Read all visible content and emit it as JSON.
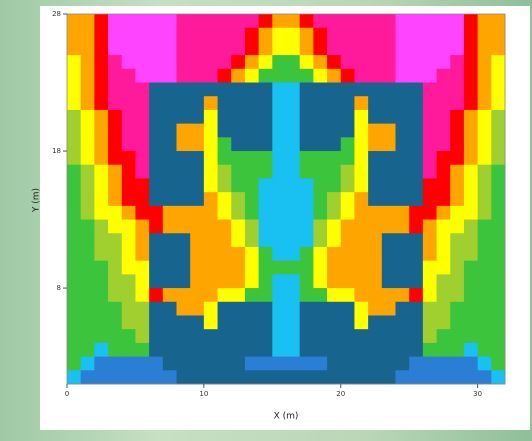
{
  "chart_data": {
    "type": "heatmap",
    "x_label": "X (m)",
    "y_label": "Y (m)",
    "xlim": [
      0,
      32
    ],
    "ylim": [
      1,
      28
    ],
    "xticks": [
      0,
      10,
      20,
      30
    ],
    "yticks": [
      8,
      18,
      28
    ],
    "colors": [
      "#17658f",
      "#2a7ed3",
      "#19c0f2",
      "#3dc43d",
      "#9fd02f",
      "#ffff00",
      "#ffa500",
      "#ff0000",
      "#ff1a9c",
      "#ff44ff"
    ],
    "z": [
      [
        6,
        6,
        7,
        9,
        9,
        9,
        9,
        9,
        8,
        8,
        8,
        8,
        8,
        8,
        7,
        6,
        6,
        7,
        8,
        8,
        8,
        8,
        8,
        8,
        9,
        9,
        9,
        9,
        9,
        7,
        6,
        6
      ],
      [
        6,
        6,
        7,
        9,
        9,
        9,
        9,
        9,
        8,
        8,
        8,
        8,
        8,
        7,
        6,
        5,
        5,
        6,
        7,
        8,
        8,
        8,
        8,
        8,
        9,
        9,
        9,
        9,
        9,
        7,
        6,
        6
      ],
      [
        6,
        6,
        7,
        9,
        9,
        9,
        9,
        9,
        8,
        8,
        8,
        8,
        8,
        7,
        6,
        5,
        5,
        6,
        7,
        8,
        8,
        8,
        8,
        8,
        9,
        9,
        9,
        9,
        9,
        7,
        6,
        6
      ],
      [
        5,
        6,
        7,
        8,
        9,
        9,
        9,
        9,
        8,
        8,
        8,
        8,
        7,
        6,
        5,
        3,
        3,
        5,
        6,
        7,
        8,
        8,
        8,
        8,
        9,
        9,
        9,
        9,
        8,
        7,
        6,
        5
      ],
      [
        5,
        6,
        7,
        8,
        8,
        9,
        9,
        9,
        8,
        8,
        8,
        7,
        6,
        5,
        3,
        3,
        3,
        3,
        5,
        6,
        7,
        8,
        8,
        8,
        9,
        9,
        9,
        8,
        8,
        7,
        6,
        5
      ],
      [
        5,
        6,
        7,
        8,
        8,
        8,
        0,
        0,
        0,
        0,
        0,
        0,
        0,
        0,
        0,
        2,
        2,
        0,
        0,
        0,
        0,
        0,
        0,
        0,
        0,
        0,
        8,
        8,
        8,
        7,
        6,
        5
      ],
      [
        5,
        6,
        7,
        8,
        8,
        8,
        0,
        0,
        0,
        0,
        6,
        0,
        0,
        0,
        0,
        2,
        2,
        0,
        0,
        0,
        0,
        6,
        0,
        0,
        0,
        0,
        8,
        8,
        8,
        7,
        6,
        5
      ],
      [
        4,
        5,
        6,
        7,
        8,
        8,
        0,
        0,
        0,
        0,
        5,
        0,
        0,
        0,
        0,
        2,
        2,
        0,
        0,
        0,
        0,
        5,
        0,
        0,
        0,
        0,
        8,
        8,
        7,
        6,
        5,
        4
      ],
      [
        4,
        5,
        6,
        7,
        8,
        8,
        0,
        0,
        6,
        6,
        5,
        0,
        0,
        0,
        0,
        2,
        2,
        0,
        0,
        0,
        0,
        5,
        6,
        6,
        0,
        0,
        8,
        8,
        7,
        6,
        5,
        4
      ],
      [
        4,
        5,
        6,
        7,
        8,
        8,
        0,
        0,
        6,
        6,
        5,
        3,
        0,
        0,
        0,
        2,
        2,
        0,
        0,
        0,
        3,
        5,
        6,
        6,
        0,
        0,
        8,
        8,
        7,
        6,
        5,
        4
      ],
      [
        4,
        5,
        6,
        7,
        7,
        8,
        0,
        0,
        0,
        0,
        5,
        3,
        3,
        3,
        3,
        2,
        2,
        3,
        3,
        3,
        3,
        5,
        0,
        0,
        0,
        0,
        8,
        7,
        7,
        6,
        5,
        4
      ],
      [
        3,
        4,
        5,
        6,
        7,
        8,
        0,
        0,
        0,
        0,
        5,
        4,
        3,
        3,
        3,
        2,
        2,
        3,
        3,
        3,
        4,
        5,
        0,
        0,
        0,
        0,
        8,
        7,
        6,
        5,
        4,
        3
      ],
      [
        3,
        4,
        5,
        6,
        7,
        7,
        0,
        0,
        0,
        0,
        5,
        4,
        3,
        3,
        2,
        2,
        2,
        2,
        3,
        3,
        4,
        5,
        0,
        0,
        0,
        0,
        7,
        7,
        6,
        5,
        4,
        3
      ],
      [
        3,
        4,
        5,
        6,
        7,
        7,
        0,
        0,
        0,
        0,
        6,
        5,
        4,
        3,
        2,
        2,
        2,
        2,
        3,
        4,
        5,
        6,
        0,
        0,
        0,
        0,
        7,
        7,
        6,
        5,
        4,
        3
      ],
      [
        3,
        4,
        5,
        5,
        6,
        7,
        7,
        6,
        6,
        6,
        6,
        5,
        4,
        3,
        2,
        2,
        2,
        2,
        3,
        4,
        5,
        6,
        6,
        6,
        6,
        7,
        7,
        6,
        5,
        5,
        4,
        3
      ],
      [
        3,
        3,
        4,
        5,
        5,
        6,
        7,
        6,
        6,
        6,
        6,
        6,
        5,
        4,
        2,
        2,
        2,
        2,
        4,
        5,
        6,
        6,
        6,
        6,
        6,
        7,
        6,
        5,
        5,
        4,
        3,
        3
      ],
      [
        3,
        3,
        4,
        4,
        5,
        6,
        0,
        0,
        0,
        6,
        6,
        6,
        5,
        4,
        2,
        2,
        2,
        2,
        4,
        5,
        6,
        6,
        6,
        0,
        0,
        0,
        6,
        5,
        4,
        4,
        3,
        3
      ],
      [
        3,
        3,
        4,
        4,
        5,
        6,
        0,
        0,
        0,
        6,
        6,
        6,
        6,
        5,
        3,
        2,
        2,
        3,
        5,
        6,
        6,
        6,
        6,
        0,
        0,
        0,
        6,
        5,
        4,
        4,
        3,
        3
      ],
      [
        3,
        3,
        3,
        4,
        5,
        5,
        0,
        0,
        0,
        6,
        6,
        6,
        6,
        5,
        3,
        3,
        3,
        3,
        5,
        6,
        6,
        6,
        6,
        0,
        0,
        0,
        5,
        5,
        4,
        3,
        3,
        3
      ],
      [
        3,
        3,
        3,
        4,
        4,
        5,
        0,
        0,
        0,
        6,
        6,
        6,
        6,
        5,
        3,
        2,
        2,
        3,
        5,
        6,
        6,
        6,
        6,
        0,
        0,
        0,
        5,
        4,
        4,
        3,
        3,
        3
      ],
      [
        3,
        3,
        3,
        4,
        4,
        5,
        7,
        6,
        6,
        6,
        6,
        5,
        5,
        3,
        3,
        2,
        2,
        3,
        3,
        5,
        5,
        6,
        6,
        6,
        6,
        7,
        5,
        4,
        4,
        3,
        3,
        3
      ],
      [
        3,
        3,
        3,
        3,
        4,
        4,
        0,
        0,
        6,
        6,
        5,
        0,
        0,
        0,
        0,
        2,
        2,
        0,
        0,
        0,
        0,
        5,
        6,
        6,
        0,
        0,
        4,
        4,
        3,
        3,
        3,
        3
      ],
      [
        3,
        3,
        3,
        3,
        4,
        4,
        0,
        0,
        0,
        0,
        5,
        0,
        0,
        0,
        0,
        2,
        2,
        0,
        0,
        0,
        0,
        5,
        0,
        0,
        0,
        0,
        4,
        4,
        3,
        3,
        3,
        3
      ],
      [
        3,
        3,
        3,
        3,
        3,
        4,
        0,
        0,
        0,
        0,
        0,
        0,
        0,
        0,
        0,
        2,
        2,
        0,
        0,
        0,
        0,
        0,
        0,
        0,
        0,
        0,
        4,
        3,
        3,
        3,
        3,
        3
      ],
      [
        3,
        3,
        2,
        3,
        3,
        3,
        0,
        0,
        0,
        0,
        0,
        0,
        0,
        0,
        0,
        2,
        2,
        0,
        0,
        0,
        0,
        0,
        0,
        0,
        0,
        0,
        3,
        3,
        3,
        2,
        3,
        3
      ],
      [
        3,
        2,
        1,
        1,
        1,
        1,
        1,
        0,
        0,
        0,
        0,
        0,
        0,
        1,
        1,
        1,
        1,
        1,
        1,
        0,
        0,
        0,
        0,
        0,
        0,
        1,
        1,
        1,
        1,
        1,
        2,
        3
      ],
      [
        2,
        1,
        1,
        1,
        1,
        1,
        1,
        1,
        0,
        0,
        0,
        0,
        0,
        0,
        0,
        0,
        0,
        0,
        0,
        0,
        0,
        0,
        0,
        0,
        1,
        1,
        1,
        1,
        1,
        1,
        1,
        2
      ]
    ]
  }
}
